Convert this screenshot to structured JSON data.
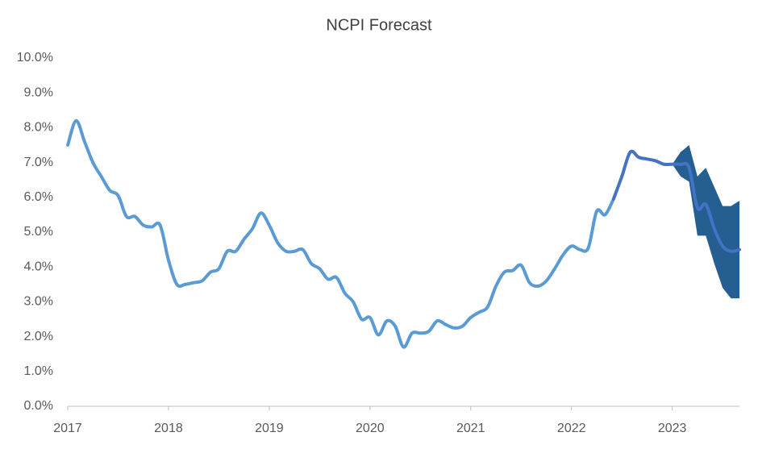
{
  "chart_data": {
    "type": "line",
    "title": "NCPI Forecast",
    "x": [
      2017,
      2017.083,
      2017.167,
      2017.25,
      2017.333,
      2017.417,
      2017.5,
      2017.583,
      2017.667,
      2017.75,
      2017.833,
      2017.917,
      2018,
      2018.083,
      2018.167,
      2018.25,
      2018.333,
      2018.417,
      2018.5,
      2018.583,
      2018.667,
      2018.75,
      2018.833,
      2018.917,
      2019,
      2019.083,
      2019.167,
      2019.25,
      2019.333,
      2019.417,
      2019.5,
      2019.583,
      2019.667,
      2019.75,
      2019.833,
      2019.917,
      2020,
      2020.083,
      2020.167,
      2020.25,
      2020.333,
      2020.417,
      2020.5,
      2020.583,
      2020.667,
      2020.75,
      2020.833,
      2020.917,
      2021,
      2021.083,
      2021.167,
      2021.25,
      2021.333,
      2021.417,
      2021.5,
      2021.583,
      2021.667,
      2021.75,
      2021.833,
      2021.917,
      2022,
      2022.083,
      2022.167,
      2022.25,
      2022.333,
      2022.417,
      2022.5,
      2022.583,
      2022.667,
      2022.75,
      2022.833,
      2022.917,
      2023,
      2023.083,
      2023.167,
      2023.25,
      2023.333,
      2023.417,
      2023.5,
      2023.583,
      2023.667
    ],
    "series": [
      {
        "color": "#5b9bd5",
        "values": [
          7.5,
          8.2,
          7.6,
          7.0,
          6.6,
          6.2,
          6.05,
          5.45,
          5.45,
          5.2,
          5.15,
          5.2,
          4.2,
          3.5,
          3.5,
          3.55,
          3.6,
          3.85,
          3.95,
          4.45,
          4.45,
          4.8,
          5.1,
          5.55,
          5.2,
          4.7,
          4.45,
          4.45,
          4.5,
          4.1,
          3.95,
          3.65,
          3.7,
          3.25,
          3.0,
          2.5,
          2.55,
          2.05,
          2.45,
          2.3,
          1.7,
          2.1,
          2.1,
          2.15,
          2.45,
          2.35,
          2.25,
          2.3,
          2.55,
          2.7,
          2.85,
          3.45,
          3.85,
          3.9,
          4.05,
          3.55,
          3.45,
          3.6,
          3.95,
          4.35,
          4.6,
          4.5,
          4.55,
          5.6,
          5.5,
          5.95,
          null,
          null,
          null,
          null,
          null,
          null,
          null,
          null,
          null,
          null,
          null,
          null,
          null,
          null,
          null
        ]
      },
      {
        "color": "#4472c4",
        "values": [
          null,
          null,
          null,
          null,
          null,
          null,
          null,
          null,
          null,
          null,
          null,
          null,
          null,
          null,
          null,
          null,
          null,
          null,
          null,
          null,
          null,
          null,
          null,
          null,
          null,
          null,
          null,
          null,
          null,
          null,
          null,
          null,
          null,
          null,
          null,
          null,
          null,
          null,
          null,
          null,
          null,
          null,
          null,
          null,
          null,
          null,
          null,
          null,
          null,
          null,
          null,
          null,
          null,
          null,
          null,
          null,
          null,
          null,
          null,
          null,
          null,
          null,
          null,
          null,
          null,
          5.95,
          6.6,
          7.3,
          7.15,
          7.1,
          7.05,
          6.95,
          6.95,
          6.95,
          6.85,
          5.7,
          5.8,
          5.1,
          4.6,
          4.45,
          4.5
        ]
      }
    ],
    "band": {
      "color": "#255e91",
      "lower": [
        null,
        null,
        null,
        null,
        null,
        null,
        null,
        null,
        null,
        null,
        null,
        null,
        null,
        null,
        null,
        null,
        null,
        null,
        null,
        null,
        null,
        null,
        null,
        null,
        null,
        null,
        null,
        null,
        null,
        null,
        null,
        null,
        null,
        null,
        null,
        null,
        null,
        null,
        null,
        null,
        null,
        null,
        null,
        null,
        null,
        null,
        null,
        null,
        null,
        null,
        null,
        null,
        null,
        null,
        null,
        null,
        null,
        null,
        null,
        null,
        null,
        null,
        null,
        null,
        null,
        null,
        null,
        null,
        null,
        null,
        null,
        null,
        6.95,
        6.6,
        6.45,
        4.9,
        4.9,
        4.1,
        3.4,
        3.1,
        3.1
      ],
      "upper": [
        null,
        null,
        null,
        null,
        null,
        null,
        null,
        null,
        null,
        null,
        null,
        null,
        null,
        null,
        null,
        null,
        null,
        null,
        null,
        null,
        null,
        null,
        null,
        null,
        null,
        null,
        null,
        null,
        null,
        null,
        null,
        null,
        null,
        null,
        null,
        null,
        null,
        null,
        null,
        null,
        null,
        null,
        null,
        null,
        null,
        null,
        null,
        null,
        null,
        null,
        null,
        null,
        null,
        null,
        null,
        null,
        null,
        null,
        null,
        null,
        null,
        null,
        null,
        null,
        null,
        null,
        null,
        null,
        null,
        null,
        null,
        null,
        6.95,
        7.3,
        7.5,
        6.6,
        6.85,
        6.3,
        5.75,
        5.75,
        5.9
      ]
    },
    "xlim": [
      2017,
      2023.667
    ],
    "xticks": [
      2017,
      2018,
      2019,
      2020,
      2021,
      2022,
      2023
    ],
    "ylim": [
      0,
      10
    ],
    "yticks": [
      {
        "value": 0,
        "label": "0.0%"
      },
      {
        "value": 1,
        "label": "1.0%"
      },
      {
        "value": 2,
        "label": "2.0%"
      },
      {
        "value": 3,
        "label": "3.0%"
      },
      {
        "value": 4,
        "label": "4.0%"
      },
      {
        "value": 5,
        "label": "5.0%"
      },
      {
        "value": 6,
        "label": "6.0%"
      },
      {
        "value": 7,
        "label": "7.0%"
      },
      {
        "value": 8,
        "label": "8.0%"
      },
      {
        "value": 9,
        "label": "9.0%"
      },
      {
        "value": 10,
        "label": "10.0%"
      }
    ],
    "grid": false
  }
}
